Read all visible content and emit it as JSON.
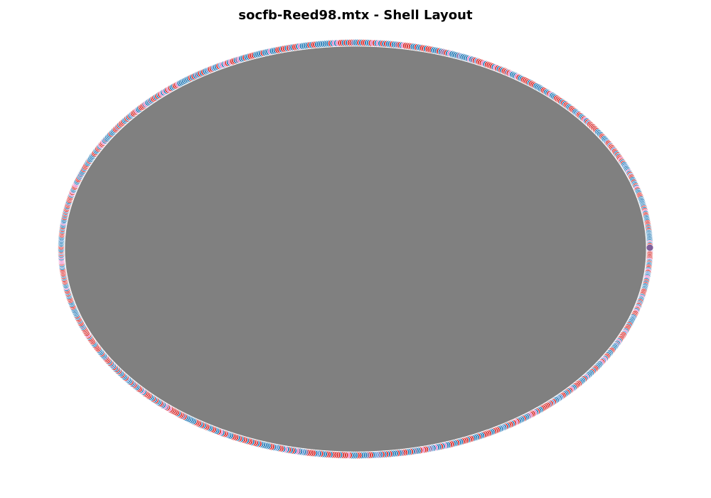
{
  "figure": {
    "title": "socfb-Reed98.mtx - Shell Layout"
  },
  "graph": {
    "layout": "shell",
    "edge_color": "#808080",
    "node_colors": [
      "#1f77b4",
      "#d62728",
      "#e377c2",
      "#7f5f9a",
      "#5b8fd6"
    ],
    "node_edge_color": "#ffffff"
  }
}
